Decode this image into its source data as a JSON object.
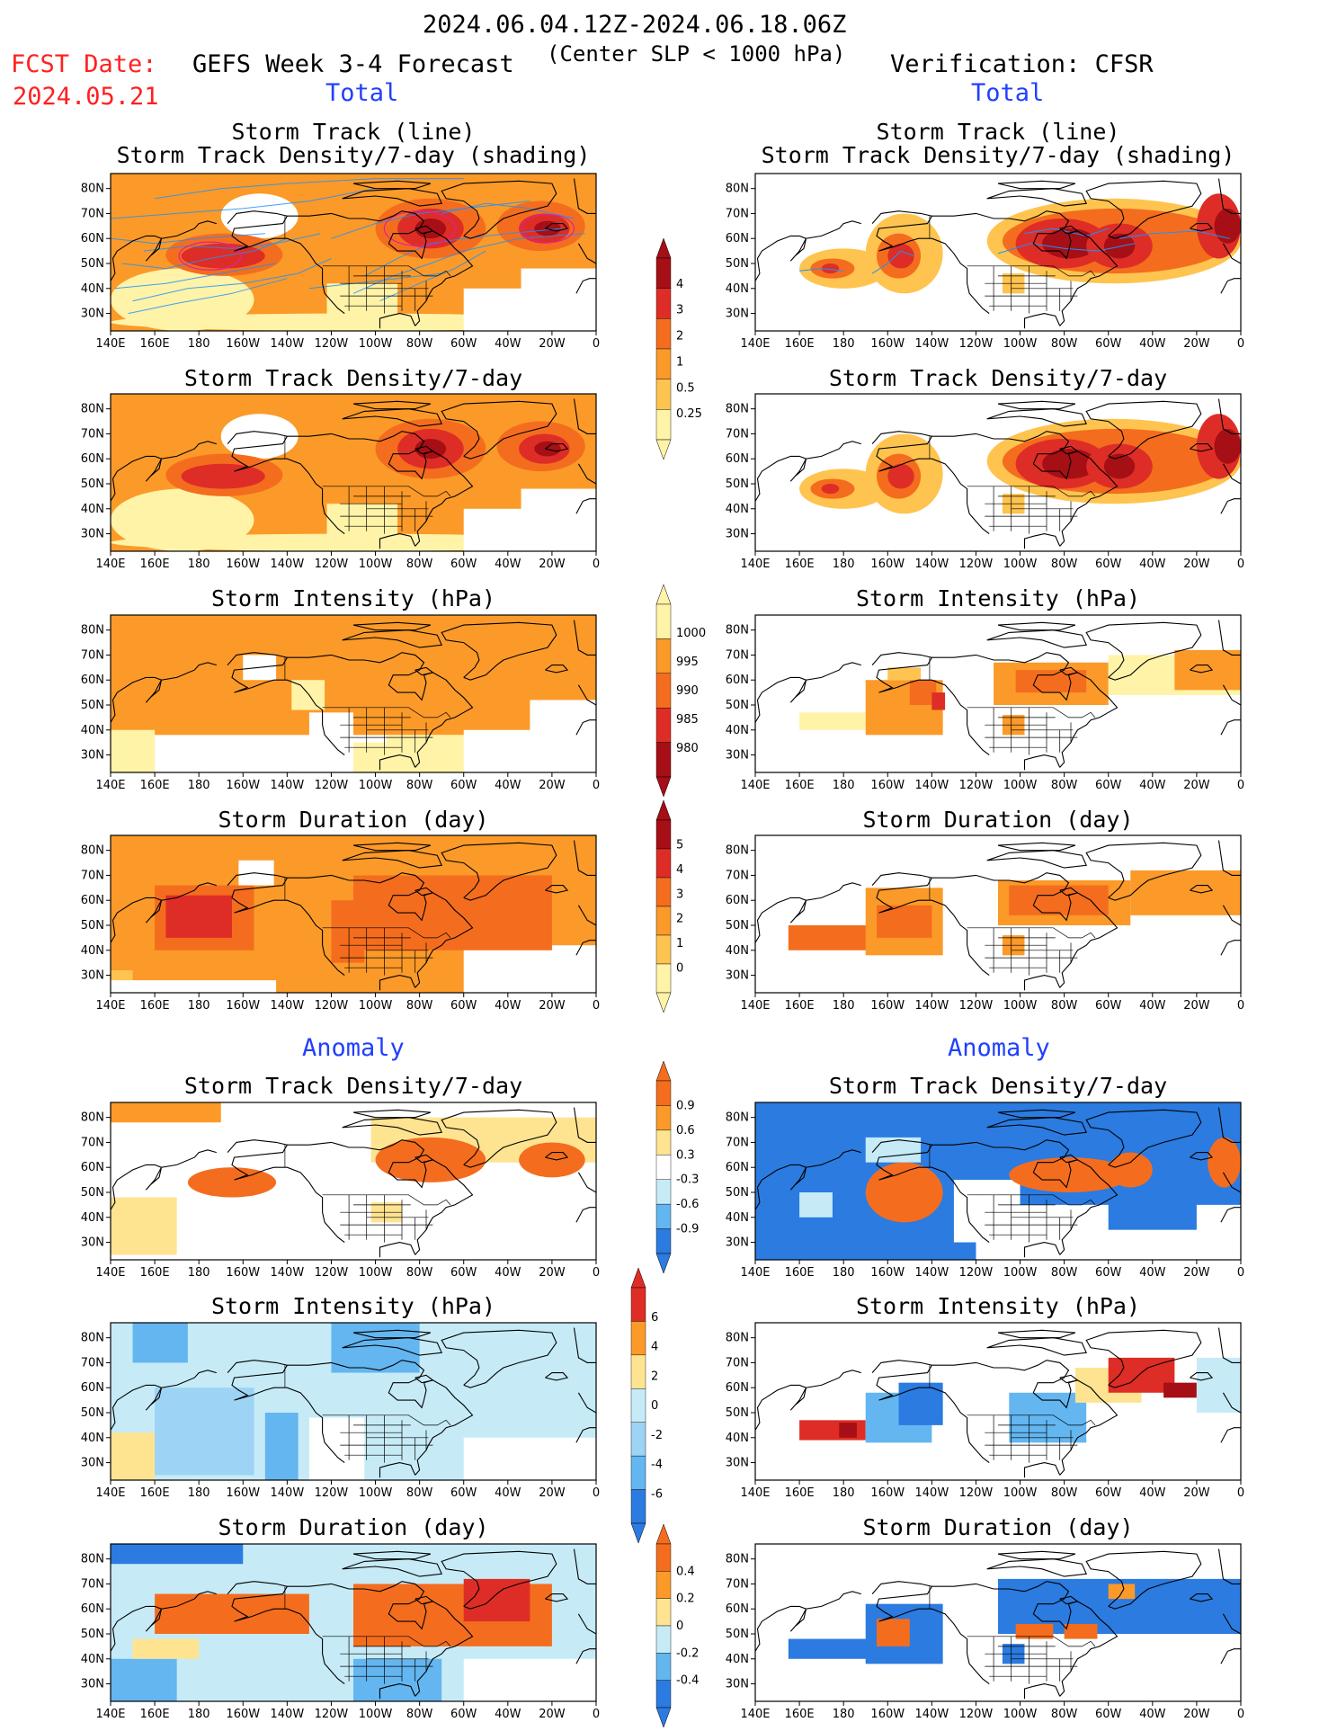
{
  "header": {
    "period": "2024.06.04.12Z-2024.06.18.06Z",
    "subtitle": "(Center SLP < 1000 hPa)",
    "fcst_label": "FCST Date:",
    "fcst_date": "2024.05.21",
    "left_title": "GEFS Week 3-4 Forecast",
    "right_title": "Verification: CFSR",
    "total_label": "Total",
    "anomaly_label": "Anomaly"
  },
  "axes": {
    "lat_labels": [
      "80N",
      "70N",
      "60N",
      "50N",
      "40N",
      "30N"
    ],
    "lon_labels": [
      "140E",
      "160E",
      "180",
      "160W",
      "140W",
      "120W",
      "100W",
      "80W",
      "60W",
      "40W",
      "20W",
      "0"
    ]
  },
  "panels": [
    {
      "title1": "Storm Track (line)",
      "title2": "Storm Track Density/7-day (shading)"
    },
    {
      "title1": "Storm Track Density/7-day",
      "title2": ""
    },
    {
      "title1": "Storm Intensity (hPa)",
      "title2": ""
    },
    {
      "title1": "Storm Duration (day)",
      "title2": ""
    },
    {
      "title1": "Storm Track Density/7-day",
      "title2": ""
    },
    {
      "title1": "Storm Intensity (hPa)",
      "title2": ""
    },
    {
      "title1": "Storm Duration (day)",
      "title2": ""
    }
  ],
  "colorbars": {
    "density_total": {
      "labels": [
        "4",
        "3",
        "2",
        "1",
        "0.5",
        "0.25"
      ],
      "colors": [
        "#a50f15",
        "#de2d26",
        "#f46d1e",
        "#fb9a29",
        "#fec44f",
        "#fff3a8"
      ]
    },
    "intensity_total": {
      "labels": [
        "1000",
        "995",
        "990",
        "985",
        "980"
      ],
      "colors": [
        "#fff3a8",
        "#fb9a29",
        "#f46d1e",
        "#de2d26",
        "#a50f15"
      ]
    },
    "duration_total": {
      "labels": [
        "5",
        "4",
        "3",
        "2",
        "1",
        "0"
      ],
      "colors": [
        "#a50f15",
        "#de2d26",
        "#f46d1e",
        "#fb9a29",
        "#fec44f",
        "#fff3a8"
      ]
    },
    "density_anom": {
      "labels": [
        "0.9",
        "0.6",
        "0.3",
        "-0.3",
        "-0.6",
        "-0.9"
      ],
      "colors": [
        "#f46d1e",
        "#fb9a29",
        "#fee391",
        "#ffffff",
        "#c6ebf7",
        "#63b6f0",
        "#2b7be0"
      ]
    },
    "intensity_anom": {
      "labels": [
        "6",
        "4",
        "2",
        "0",
        "-2",
        "-4",
        "-6"
      ],
      "colors": [
        "#de2d26",
        "#fb9a29",
        "#fee391",
        "#c6ebf7",
        "#9dd3f5",
        "#63b6f0",
        "#2b7be0"
      ]
    },
    "duration_anom": {
      "labels": [
        "0.4",
        "0.2",
        "0",
        "-0.2",
        "-0.4"
      ],
      "colors": [
        "#f46d1e",
        "#fb9a29",
        "#fee391",
        "#c6ebf7",
        "#63b6f0",
        "#2b7be0"
      ]
    }
  }
}
